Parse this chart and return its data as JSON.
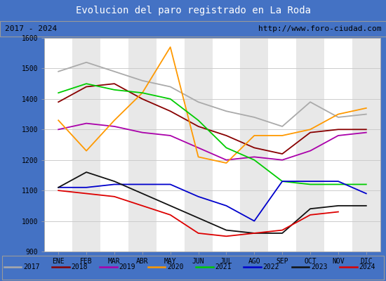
{
  "title": "Evolucion del paro registrado en La Roda",
  "title_bg": "#4472c4",
  "subtitle_left": "2017 - 2024",
  "subtitle_right": "http://www.foro-ciudad.com",
  "ylim": [
    900,
    1600
  ],
  "yticks": [
    900,
    1000,
    1100,
    1200,
    1300,
    1400,
    1500,
    1600
  ],
  "months": [
    "ENE",
    "FEB",
    "MAR",
    "ABR",
    "MAY",
    "JUN",
    "JUL",
    "AGO",
    "SEP",
    "OCT",
    "NOV",
    "DIC"
  ],
  "series": {
    "2017": {
      "color": "#aaaaaa",
      "data": [
        1490,
        1520,
        1490,
        1460,
        1440,
        1390,
        1360,
        1340,
        1310,
        1390,
        1340,
        1350
      ]
    },
    "2018": {
      "color": "#880000",
      "data": [
        1390,
        1440,
        1450,
        1400,
        1360,
        1310,
        1280,
        1240,
        1220,
        1290,
        1300,
        1300
      ]
    },
    "2019": {
      "color": "#aa00aa",
      "data": [
        1300,
        1320,
        1310,
        1290,
        1280,
        1240,
        1200,
        1210,
        1200,
        1230,
        1280,
        1290
      ]
    },
    "2020": {
      "color": "#ff9900",
      "data": [
        1330,
        1230,
        1330,
        1420,
        1570,
        1210,
        1190,
        1280,
        1280,
        1300,
        1350,
        1370
      ]
    },
    "2021": {
      "color": "#00cc00",
      "data": [
        1420,
        1450,
        1430,
        1420,
        1400,
        1330,
        1240,
        1200,
        1130,
        1120,
        1120,
        1120
      ]
    },
    "2022": {
      "color": "#0000cc",
      "data": [
        1110,
        1110,
        1120,
        1120,
        1120,
        1080,
        1050,
        1000,
        1130,
        1130,
        1130,
        1090
      ]
    },
    "2023": {
      "color": "#111111",
      "data": [
        1110,
        1160,
        1130,
        1090,
        1050,
        1010,
        970,
        960,
        960,
        1040,
        1050,
        1050
      ]
    },
    "2024": {
      "color": "#dd0000",
      "data": [
        1100,
        1090,
        1080,
        1050,
        1020,
        960,
        950,
        960,
        970,
        1020,
        1030,
        null
      ]
    }
  },
  "legend_order": [
    "2017",
    "2018",
    "2019",
    "2020",
    "2021",
    "2022",
    "2023",
    "2024"
  ]
}
